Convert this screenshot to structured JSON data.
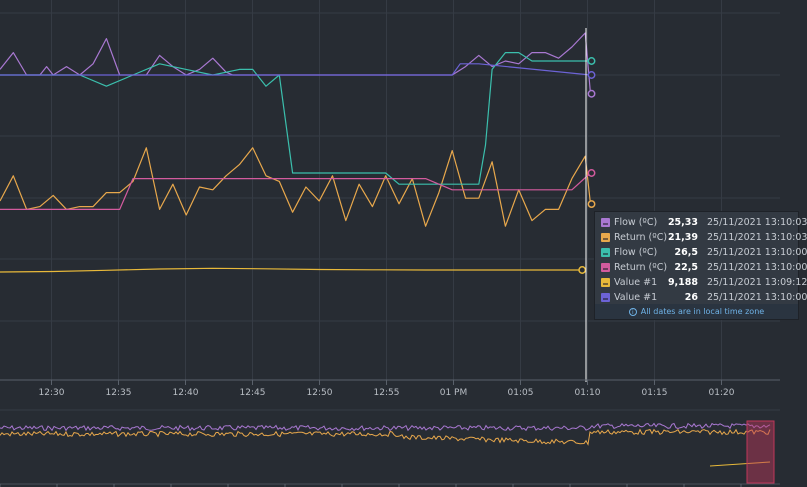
{
  "chart_data": {
    "type": "line",
    "x_ticks": [
      "12:30",
      "12:35",
      "12:40",
      "12:45",
      "12:50",
      "12:55",
      "01 PM",
      "01:05",
      "01:10",
      "01:15",
      "01:20"
    ],
    "series": [
      {
        "name": "Flow (ºC)",
        "color": "#a978d2",
        "x": [
          0,
          1,
          2,
          3,
          3.5,
          4,
          5,
          6,
          7,
          8,
          9,
          10,
          11,
          12,
          13,
          14,
          15,
          16,
          17,
          17.5,
          18,
          19,
          20,
          21,
          22,
          23,
          24,
          25,
          26,
          27,
          28,
          29,
          30,
          31,
          32,
          33,
          34,
          35,
          36,
          37,
          38,
          39,
          40,
          41,
          42,
          43,
          44,
          44.4
        ],
        "values": [
          26.2,
          26.8,
          26,
          26,
          26.3,
          26,
          26.3,
          26,
          26.4,
          27.3,
          26,
          26,
          26,
          26.7,
          26.3,
          26,
          26.2,
          26.6,
          26.1,
          26,
          26,
          26,
          26,
          26,
          26,
          26,
          26,
          26,
          26,
          26,
          26,
          26,
          26,
          26,
          26,
          26,
          26,
          26.3,
          26.7,
          26.3,
          26.5,
          26.4,
          26.8,
          26.8,
          26.6,
          27,
          27.5,
          25.33
        ]
      },
      {
        "name": "Return (ºC)",
        "color": "#e8a84c",
        "x": [
          0,
          1,
          2,
          3,
          4,
          5,
          6,
          7,
          8,
          9,
          10,
          11,
          12,
          13,
          14,
          15,
          16,
          17,
          18,
          19,
          20,
          21,
          22,
          23,
          24,
          25,
          26,
          27,
          28,
          29,
          30,
          31,
          32,
          33,
          34,
          35,
          36,
          37,
          38,
          39,
          40,
          41,
          42,
          43,
          44,
          44.4
        ],
        "values": [
          21.5,
          22.4,
          21.2,
          21.3,
          21.7,
          21.2,
          21.3,
          21.3,
          21.8,
          21.8,
          22.2,
          23.4,
          21.2,
          22.1,
          21,
          22,
          21.9,
          22.4,
          22.8,
          23.4,
          22.4,
          22.2,
          21.1,
          22,
          21.5,
          22.4,
          20.8,
          22.1,
          21.3,
          22.4,
          21.4,
          22.3,
          20.6,
          21.8,
          23.3,
          21.6,
          21.6,
          22.9,
          20.6,
          21.9,
          20.8,
          21.2,
          21.2,
          22.3,
          23.1,
          21.39
        ]
      },
      {
        "name": "Flow (ºC)",
        "color": "#3bbfad",
        "x": [
          0,
          2,
          4,
          6,
          8,
          10,
          12,
          14,
          16,
          18,
          19,
          20,
          21,
          22,
          24,
          26,
          28,
          29,
          30,
          31,
          32,
          34,
          36,
          36.5,
          37,
          38,
          39,
          40,
          44.4
        ],
        "values": [
          26,
          26,
          26,
          26,
          25.6,
          26,
          26.4,
          26.2,
          26,
          26.2,
          26.2,
          25.6,
          26,
          22.5,
          22.5,
          22.5,
          22.5,
          22.5,
          22.1,
          22.1,
          22.1,
          22.1,
          22.1,
          23.5,
          26.2,
          26.8,
          26.8,
          26.5,
          26.5
        ]
      },
      {
        "name": "Return (ºC)",
        "color": "#d35b9e",
        "x": [
          0,
          2,
          4,
          6,
          8,
          9,
          10,
          12,
          14,
          16,
          18,
          20,
          22,
          24,
          26,
          28,
          30,
          32,
          34,
          36,
          38,
          40,
          43,
          44.4
        ],
        "values": [
          21.2,
          21.2,
          21.2,
          21.2,
          21.2,
          21.2,
          22.3,
          22.3,
          22.3,
          22.3,
          22.3,
          22.3,
          22.3,
          22.3,
          22.3,
          22.3,
          22.3,
          22.3,
          21.9,
          21.9,
          21.9,
          21.9,
          21.9,
          22.5
        ]
      },
      {
        "name": "Value #1",
        "color": "#e8b93a",
        "x": [
          0,
          4,
          8,
          12,
          16,
          20,
          24,
          28,
          32,
          36,
          40,
          43.7
        ],
        "values": [
          9.18,
          9.182,
          9.187,
          9.192,
          9.195,
          9.193,
          9.19,
          9.189,
          9.188,
          9.188,
          9.188,
          9.188
        ]
      },
      {
        "name": "Value #1",
        "color": "#6c63d6",
        "x": [
          0,
          4,
          8,
          12,
          16,
          20,
          24,
          28,
          34,
          34.6,
          36,
          44.4
        ],
        "values": [
          26,
          26,
          26,
          26,
          26,
          26,
          26,
          26,
          26,
          26.4,
          26.4,
          26
        ]
      }
    ]
  },
  "legend": {
    "rows": [
      {
        "name": "Flow (ºC)",
        "value": "25,33",
        "time": "25/11/2021 13:10:03",
        "color": "#a978d2"
      },
      {
        "name": "Return (ºC)",
        "value": "21,39",
        "time": "25/11/2021 13:10:03",
        "color": "#e8a84c"
      },
      {
        "name": "Flow (ºC)",
        "value": "26,5",
        "time": "25/11/2021 13:10:00",
        "color": "#3bbfad"
      },
      {
        "name": "Return (ºC)",
        "value": "22,5",
        "time": "25/11/2021 13:10:00",
        "color": "#d35b9e"
      },
      {
        "name": "Value #1",
        "value": "9,188",
        "time": "25/11/2021 13:09:12",
        "color": "#e8b93a"
      },
      {
        "name": "Value #1",
        "value": "26",
        "time": "25/11/2021 13:10:00",
        "color": "#6c63d6"
      }
    ],
    "footer": "All dates are in local time zone"
  },
  "colors": {
    "background": "#272c33",
    "grid": "#353b44",
    "crosshair": "#ffffff",
    "navigator_selection": "#c0385a"
  }
}
